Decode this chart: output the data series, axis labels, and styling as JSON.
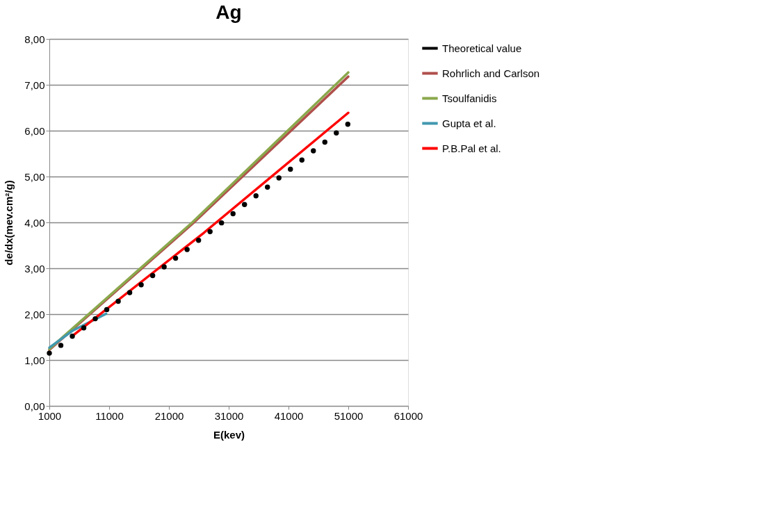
{
  "chart_data": {
    "type": "line",
    "title": "Ag",
    "xlabel": "E(kev)",
    "ylabel": "de/dx(mev.cm²/g)",
    "xlim": [
      1000,
      61000
    ],
    "xticks": [
      1000,
      11000,
      21000,
      31000,
      41000,
      51000,
      61000
    ],
    "ylim": [
      0,
      8
    ],
    "yticks": [
      {
        "value": 0,
        "label": "0,00"
      },
      {
        "value": 1,
        "label": "1,00"
      },
      {
        "value": 2,
        "label": "2,00"
      },
      {
        "value": 3,
        "label": "3,00"
      },
      {
        "value": 4,
        "label": "4,00"
      },
      {
        "value": 5,
        "label": "5,00"
      },
      {
        "value": 6,
        "label": "6,00"
      },
      {
        "value": 7,
        "label": "7,00"
      },
      {
        "value": 8,
        "label": "8,00"
      }
    ],
    "grid": "y",
    "legend": "right",
    "series": [
      {
        "name": "Theoretical value",
        "type": "scatter",
        "marker": "circle",
        "color": "#000000",
        "x": [
          1000,
          2920,
          4840,
          6760,
          8680,
          10600,
          12520,
          14440,
          16360,
          18280,
          20200,
          22120,
          24040,
          25960,
          27880,
          29800,
          31720,
          33640,
          35560,
          37480,
          39400,
          41320,
          43240,
          45160,
          47080,
          49000,
          50920
        ],
        "values": [
          1.15,
          1.32,
          1.52,
          1.7,
          1.9,
          2.1,
          2.28,
          2.47,
          2.64,
          2.84,
          3.03,
          3.22,
          3.41,
          3.61,
          3.8,
          3.99,
          4.19,
          4.39,
          4.58,
          4.77,
          4.97,
          5.16,
          5.36,
          5.56,
          5.75,
          5.95,
          6.14
        ]
      },
      {
        "name": "Rohrlich and Carlson",
        "color": "#b0504c",
        "x": [
          1000,
          25200,
          51000
        ],
        "values": [
          1.22,
          4.0,
          7.18
        ]
      },
      {
        "name": "Tsoulfanidis",
        "color": "#8aa84c",
        "x": [
          1000,
          24900,
          51000
        ],
        "values": [
          1.24,
          4.0,
          7.27
        ]
      },
      {
        "name": "Gupta et al.",
        "color": "#4198af",
        "x": [
          1000,
          4900,
          10500
        ],
        "values": [
          1.27,
          1.64,
          2.01
        ]
      },
      {
        "name": "P.B.Pal et al.",
        "color": "#ff0000",
        "x": [
          5000,
          26900,
          51000
        ],
        "values": [
          1.54,
          3.78,
          6.39
        ]
      }
    ]
  }
}
